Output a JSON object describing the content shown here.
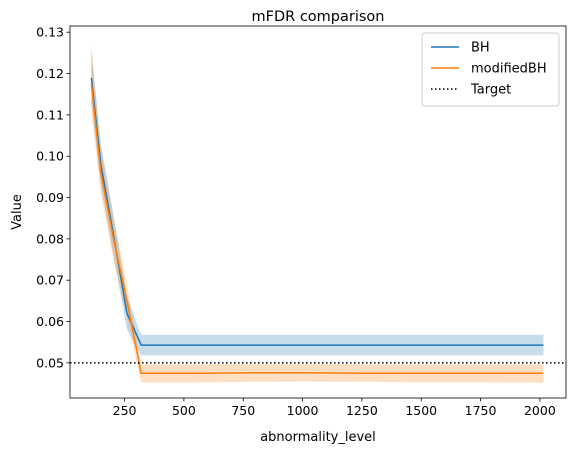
{
  "chart_data": {
    "type": "line",
    "title": "mFDR comparison",
    "xlabel": "abnormality_level",
    "ylabel": "Value",
    "xlim": [
      20,
      2110
    ],
    "ylim": [
      0.0415,
      0.1315
    ],
    "xticks": [
      250,
      500,
      750,
      1000,
      1250,
      1500,
      1750,
      2000
    ],
    "yticks": [
      0.05,
      0.06,
      0.07,
      0.08,
      0.09,
      0.1,
      0.11,
      0.12,
      0.13
    ],
    "x": [
      110,
      150,
      200,
      260,
      320,
      400,
      600,
      800,
      1000,
      1250,
      1500,
      1750,
      2015
    ],
    "series": [
      {
        "name": "BH",
        "color": "#1f77b4",
        "values": [
          0.119,
          0.098,
          0.082,
          0.062,
          0.0543,
          0.0543,
          0.0543,
          0.0543,
          0.0543,
          0.0543,
          0.0543,
          0.0543,
          0.0543
        ],
        "lower": [
          0.113,
          0.093,
          0.077,
          0.058,
          0.0518,
          0.0518,
          0.0518,
          0.0518,
          0.0518,
          0.0518,
          0.0518,
          0.0518,
          0.0518
        ],
        "upper": [
          0.1255,
          0.103,
          0.087,
          0.066,
          0.0568,
          0.0568,
          0.0568,
          0.0568,
          0.0568,
          0.0568,
          0.0568,
          0.0568,
          0.0568
        ]
      },
      {
        "name": "modifiedBH",
        "color": "#ff7f0e",
        "values": [
          0.1175,
          0.096,
          0.081,
          0.065,
          0.0475,
          0.0475,
          0.0475,
          0.0476,
          0.0476,
          0.0475,
          0.0475,
          0.0475,
          0.0475
        ],
        "lower": [
          0.111,
          0.091,
          0.076,
          0.061,
          0.0453,
          0.0452,
          0.0453,
          0.0454,
          0.0455,
          0.0454,
          0.0453,
          0.0453,
          0.0452
        ],
        "upper": [
          0.1265,
          0.102,
          0.086,
          0.069,
          0.0497,
          0.0497,
          0.0497,
          0.0498,
          0.0498,
          0.0497,
          0.0497,
          0.0497,
          0.0497
        ]
      }
    ],
    "target": {
      "name": "Target",
      "value": 0.05,
      "color": "#000000"
    },
    "legend": "top-right",
    "grid": false
  }
}
